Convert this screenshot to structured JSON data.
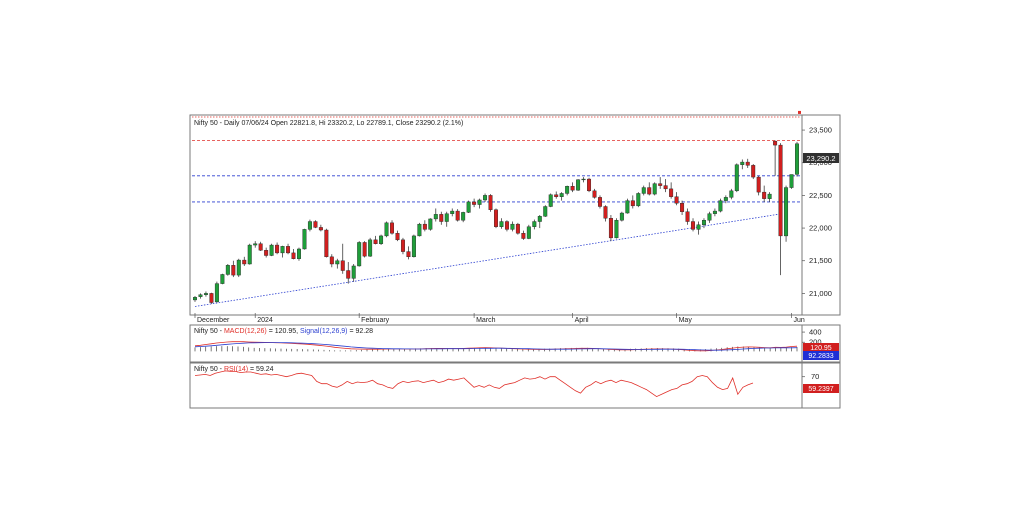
{
  "main_title": "Nifty 50 - Daily 07/06/24 Open 22821.8, Hi 23320.2, Lo 22789.1, Close 23290.2 (2.1%)",
  "last_price_tag": "23,290.2",
  "macd_title": {
    "prefix": "Nifty 50 - ",
    "macd_label": "MACD(12,26)",
    "macd_value": " = 120.95, ",
    "signal_label": "Signal(12,26,9)",
    "signal_value": " = 92.28"
  },
  "macd_tags": {
    "macd": "120.95",
    "signal": "92.2833"
  },
  "rsi_title": {
    "prefix": "Nifty 50 - ",
    "rsi_label": "RSI(14)",
    "rsi_value": " = 59.24"
  },
  "rsi_tag": "59.2397",
  "colors": {
    "bull_candle": "#1f9e3a",
    "bear_candle": "#d11f1f",
    "resistance_red": "#e0302a",
    "support_blue": "#2b3fd0",
    "macd_line": "#e0302a",
    "signal_line": "#2b3fd0",
    "rsi_line": "#e0302a",
    "tag_blue": "#1f2fd6",
    "tag_red": "#d11f1f",
    "tag_dark": "#303030"
  },
  "chart_data": [
    {
      "type": "candlestick",
      "title": "Nifty 50 - Daily 07/06/24 Open 22821.8, Hi 23320.2, Lo 22789.1, Close 23290.2 (2.1%)",
      "y_ticks": [
        21000,
        21500,
        22000,
        22500,
        23000,
        23500
      ],
      "y_tick_labels": [
        "21,000",
        "21,500",
        "22,000",
        "22,500",
        "23,000",
        "23,500"
      ],
      "ylim": [
        20700,
        23700
      ],
      "x_month_labels": [
        {
          "label": "December",
          "index": 0
        },
        {
          "label": "2024",
          "index": 11
        },
        {
          "label": "February",
          "index": 30
        },
        {
          "label": "March",
          "index": 51
        },
        {
          "label": "April",
          "index": 69
        },
        {
          "label": "May",
          "index": 88
        },
        {
          "label": "Jun",
          "index": 109
        }
      ],
      "horizontal_levels": [
        {
          "value": 23770,
          "color": "red",
          "style": "dotted"
        },
        {
          "value": 23340,
          "color": "red",
          "style": "dashed"
        },
        {
          "value": 22800,
          "color": "blue",
          "style": "dashed"
        },
        {
          "value": 22400,
          "color": "blue",
          "style": "dashed"
        }
      ],
      "trendline": {
        "from": {
          "index": 0,
          "value": 20800
        },
        "to": {
          "index": 120,
          "value": 22220
        }
      },
      "ohlc": [
        [
          20900,
          20960,
          20870,
          20940
        ],
        [
          20950,
          21000,
          20920,
          20980
        ],
        [
          20980,
          21030,
          20950,
          21000
        ],
        [
          21000,
          21010,
          20840,
          20860
        ],
        [
          20870,
          21180,
          20860,
          21150
        ],
        [
          21150,
          21300,
          21140,
          21290
        ],
        [
          21290,
          21450,
          21270,
          21430
        ],
        [
          21430,
          21500,
          21250,
          21280
        ],
        [
          21280,
          21530,
          21250,
          21510
        ],
        [
          21510,
          21560,
          21420,
          21450
        ],
        [
          21450,
          21760,
          21440,
          21740
        ],
        [
          21740,
          21800,
          21700,
          21760
        ],
        [
          21760,
          21790,
          21650,
          21660
        ],
        [
          21660,
          21700,
          21550,
          21580
        ],
        [
          21580,
          21760,
          21570,
          21740
        ],
        [
          21740,
          21780,
          21600,
          21620
        ],
        [
          21620,
          21730,
          21550,
          21720
        ],
        [
          21720,
          21760,
          21600,
          21620
        ],
        [
          21620,
          21680,
          21520,
          21530
        ],
        [
          21530,
          21700,
          21500,
          21680
        ],
        [
          21680,
          21990,
          21670,
          21980
        ],
        [
          21980,
          22130,
          21950,
          22100
        ],
        [
          22100,
          22120,
          22000,
          22010
        ],
        [
          22010,
          22050,
          21950,
          21970
        ],
        [
          21970,
          21990,
          21550,
          21560
        ],
        [
          21560,
          21600,
          21400,
          21450
        ],
        [
          21450,
          21530,
          21380,
          21500
        ],
        [
          21500,
          21760,
          21300,
          21350
        ],
        [
          21350,
          21480,
          21150,
          21230
        ],
        [
          21230,
          21450,
          21180,
          21420
        ],
        [
          21420,
          21800,
          21410,
          21780
        ],
        [
          21780,
          21800,
          21550,
          21570
        ],
        [
          21570,
          21850,
          21560,
          21820
        ],
        [
          21820,
          21880,
          21750,
          21760
        ],
        [
          21760,
          21900,
          21740,
          21880
        ],
        [
          21880,
          22100,
          21860,
          22080
        ],
        [
          22080,
          22120,
          21900,
          21920
        ],
        [
          21920,
          21960,
          21800,
          21820
        ],
        [
          21820,
          21850,
          21600,
          21640
        ],
        [
          21640,
          21720,
          21520,
          21560
        ],
        [
          21560,
          21900,
          21550,
          21880
        ],
        [
          21880,
          22080,
          21870,
          22060
        ],
        [
          22060,
          22120,
          21950,
          21980
        ],
        [
          21980,
          22150,
          21960,
          22140
        ],
        [
          22140,
          22300,
          22100,
          22210
        ],
        [
          22210,
          22250,
          22050,
          22100
        ],
        [
          22100,
          22250,
          22020,
          22220
        ],
        [
          22220,
          22300,
          22180,
          22260
        ],
        [
          22260,
          22290,
          22100,
          22120
        ],
        [
          22120,
          22250,
          22090,
          22240
        ],
        [
          22240,
          22420,
          22230,
          22400
        ],
        [
          22400,
          22450,
          22320,
          22360
        ],
        [
          22360,
          22450,
          22300,
          22430
        ],
        [
          22430,
          22530,
          22400,
          22500
        ],
        [
          22500,
          22520,
          22250,
          22280
        ],
        [
          22280,
          22300,
          22000,
          22020
        ],
        [
          22020,
          22150,
          21990,
          22100
        ],
        [
          22100,
          22120,
          21950,
          21980
        ],
        [
          21980,
          22100,
          21950,
          22060
        ],
        [
          22060,
          22080,
          21900,
          21920
        ],
        [
          21920,
          21960,
          21820,
          21840
        ],
        [
          21840,
          22050,
          21830,
          22020
        ],
        [
          22020,
          22130,
          21980,
          22100
        ],
        [
          22100,
          22200,
          22000,
          22180
        ],
        [
          22180,
          22350,
          22170,
          22330
        ],
        [
          22330,
          22530,
          22320,
          22510
        ],
        [
          22510,
          22560,
          22450,
          22480
        ],
        [
          22480,
          22550,
          22420,
          22530
        ],
        [
          22530,
          22650,
          22500,
          22640
        ],
        [
          22640,
          22700,
          22550,
          22580
        ],
        [
          22580,
          22750,
          22570,
          22740
        ],
        [
          22740,
          22780,
          22700,
          22750
        ],
        [
          22750,
          22770,
          22550,
          22570
        ],
        [
          22570,
          22600,
          22450,
          22470
        ],
        [
          22470,
          22500,
          22300,
          22330
        ],
        [
          22330,
          22350,
          22100,
          22150
        ],
        [
          22150,
          22200,
          21800,
          21850
        ],
        [
          21850,
          22150,
          21840,
          22120
        ],
        [
          22120,
          22250,
          22100,
          22230
        ],
        [
          22230,
          22450,
          22220,
          22420
        ],
        [
          22420,
          22500,
          22300,
          22340
        ],
        [
          22340,
          22550,
          22320,
          22530
        ],
        [
          22530,
          22650,
          22500,
          22620
        ],
        [
          22620,
          22700,
          22500,
          22520
        ],
        [
          22520,
          22700,
          22500,
          22680
        ],
        [
          22680,
          22780,
          22600,
          22650
        ],
        [
          22650,
          22750,
          22550,
          22600
        ],
        [
          22600,
          22700,
          22450,
          22480
        ],
        [
          22480,
          22550,
          22350,
          22380
        ],
        [
          22380,
          22420,
          22200,
          22250
        ],
        [
          22250,
          22300,
          22050,
          22100
        ],
        [
          22100,
          22150,
          21950,
          21980
        ],
        [
          21980,
          22100,
          21900,
          22050
        ],
        [
          22050,
          22150,
          22000,
          22120
        ],
        [
          22120,
          22250,
          22080,
          22220
        ],
        [
          22220,
          22300,
          22180,
          22260
        ],
        [
          22260,
          22450,
          22240,
          22420
        ],
        [
          22420,
          22500,
          22380,
          22470
        ],
        [
          22470,
          22600,
          22440,
          22570
        ],
        [
          22570,
          22990,
          22550,
          22970
        ],
        [
          22970,
          23050,
          22900,
          23010
        ],
        [
          23010,
          23060,
          22920,
          22960
        ],
        [
          22960,
          22980,
          22750,
          22780
        ],
        [
          22780,
          22800,
          22500,
          22550
        ],
        [
          22550,
          22650,
          22400,
          22450
        ],
        [
          22450,
          22550,
          22400,
          22520
        ],
        [
          23330,
          23340,
          22800,
          23270
        ],
        [
          23270,
          23300,
          21280,
          21880
        ],
        [
          21880,
          22650,
          21790,
          22620
        ],
        [
          22620,
          22800,
          22600,
          22820
        ],
        [
          22821.8,
          23320.2,
          22789.1,
          23290.2
        ]
      ]
    },
    {
      "type": "line",
      "title": "Nifty 50 - MACD(12,26) = 120.95, Signal(12,26,9) = 92.28",
      "y_ticks": [
        200,
        400
      ],
      "ylim": [
        -150,
        500
      ],
      "series": [
        {
          "name": "MACD(12,26)",
          "last_value": 120.95,
          "values": [
            130,
            140,
            155,
            170,
            185,
            195,
            205,
            210,
            212,
            210,
            205,
            200,
            198,
            196,
            194,
            190,
            186,
            182,
            178,
            172,
            166,
            160,
            150,
            140,
            128,
            115,
            100,
            88,
            78,
            70,
            66,
            64,
            62,
            62,
            63,
            65,
            67,
            68,
            68,
            67,
            66,
            66,
            68,
            72,
            76,
            78,
            78,
            77,
            76,
            76,
            78,
            82,
            86,
            90,
            92,
            90,
            86,
            82,
            78,
            74,
            70,
            66,
            62,
            58,
            56,
            56,
            58,
            62,
            66,
            70,
            74,
            78,
            80,
            80,
            78,
            74,
            68,
            60,
            54,
            50,
            48,
            50,
            54,
            58,
            62,
            66,
            68,
            68,
            66,
            62,
            56,
            48,
            40,
            34,
            30,
            32,
            38,
            46,
            56,
            70,
            84,
            96,
            104,
            108,
            106,
            100,
            94,
            90,
            100,
            98,
            105,
            115,
            120.95
          ]
        },
        {
          "name": "Signal(12,26,9)",
          "last_value": 92.28,
          "values": [
            110,
            115,
            122,
            130,
            140,
            150,
            160,
            168,
            175,
            181,
            186,
            189,
            191,
            192,
            193,
            193,
            192,
            190,
            188,
            185,
            181,
            177,
            171,
            165,
            157,
            149,
            139,
            129,
            119,
            109,
            100,
            93,
            87,
            82,
            78,
            75,
            73,
            71,
            70,
            69,
            68,
            67,
            67,
            68,
            69,
            70,
            71,
            72,
            72,
            73,
            73,
            74,
            76,
            78,
            80,
            81,
            82,
            82,
            81,
            79,
            77,
            75,
            72,
            69,
            66,
            64,
            62,
            62,
            62,
            63,
            65,
            67,
            69,
            71,
            72,
            72,
            71,
            69,
            66,
            63,
            60,
            58,
            57,
            57,
            58,
            59,
            61,
            62,
            63,
            63,
            62,
            60,
            57,
            53,
            49,
            46,
            44,
            44,
            45,
            48,
            53,
            59,
            66,
            73,
            79,
            83,
            86,
            87,
            89,
            90,
            91,
            91,
            92.28
          ]
        }
      ],
      "histogram_note": "MACD minus Signal shown as bars"
    },
    {
      "type": "line",
      "title": "Nifty 50 - RSI(14) = 59.24",
      "y_ticks": [
        70
      ],
      "ylim": [
        20,
        90
      ],
      "series": [
        {
          "name": "RSI(14)",
          "last_value": 59.24,
          "values": [
            72,
            73,
            74,
            72,
            76,
            78,
            80,
            79,
            79,
            77,
            78,
            78,
            76,
            74,
            75,
            73,
            74,
            72,
            70,
            72,
            75,
            76,
            74,
            72,
            62,
            58,
            58,
            54,
            52,
            56,
            62,
            58,
            61,
            60,
            61,
            64,
            58,
            56,
            52,
            50,
            58,
            62,
            60,
            62,
            63,
            60,
            62,
            64,
            60,
            62,
            66,
            64,
            66,
            68,
            60,
            52,
            55,
            52,
            56,
            52,
            50,
            56,
            58,
            60,
            64,
            68,
            66,
            67,
            70,
            66,
            70,
            70,
            64,
            58,
            52,
            46,
            42,
            52,
            56,
            62,
            58,
            62,
            64,
            60,
            64,
            62,
            60,
            56,
            52,
            48,
            42,
            36,
            40,
            44,
            48,
            50,
            56,
            58,
            62,
            70,
            72,
            70,
            60,
            52,
            48,
            50,
            68,
            40,
            52,
            56,
            59.24
          ]
        }
      ]
    }
  ]
}
